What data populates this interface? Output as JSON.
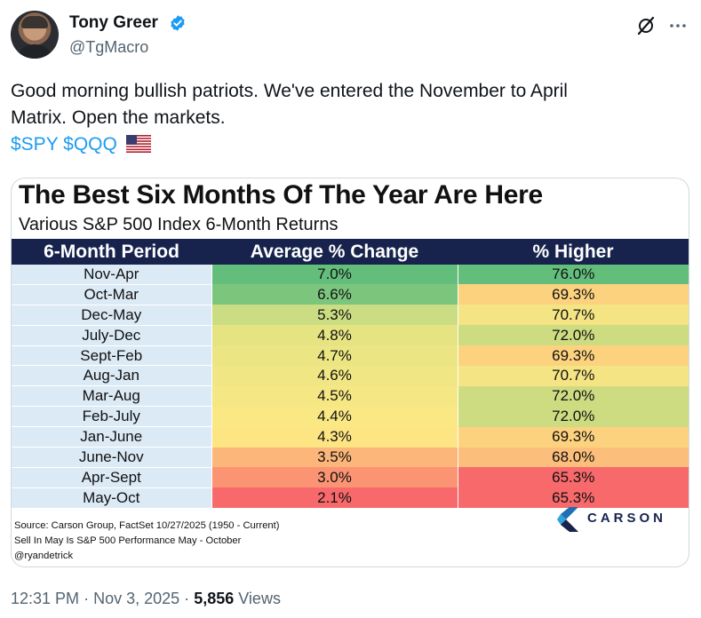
{
  "author": {
    "name": "Tony Greer",
    "handle": "@TgMacro",
    "verified_color": "#1d9bf0"
  },
  "tweet": {
    "line1": "Good morning bullish patriots.  We've entered the November to April",
    "line2": "Matrix.  Open the markets.",
    "cashtags": "$SPY $QQQ",
    "flag_icon": "us-flag-icon"
  },
  "card": {
    "title": "The Best Six Months Of The Year Are Here",
    "subtitle": "Various S&P 500 Index 6-Month Returns",
    "headers": [
      "6-Month Period",
      "Average % Change",
      "% Higher"
    ],
    "rows": [
      {
        "period": "Nov-Apr",
        "avg": "7.0%",
        "pct": "76.0%",
        "avg_color": "#63be7b",
        "pct_color": "#63be7b"
      },
      {
        "period": "Oct-Mar",
        "avg": "6.6%",
        "pct": "69.3%",
        "avg_color": "#7cc57d",
        "pct_color": "#fdd27f"
      },
      {
        "period": "Dec-May",
        "avg": "5.3%",
        "pct": "70.7%",
        "avg_color": "#cadd82",
        "pct_color": "#f4e483"
      },
      {
        "period": "July-Dec",
        "avg": "4.8%",
        "pct": "72.0%",
        "avg_color": "#e6e383",
        "pct_color": "#cddc80"
      },
      {
        "period": "Sept-Feb",
        "avg": "4.7%",
        "pct": "69.3%",
        "avg_color": "#ebe583",
        "pct_color": "#fdd27f"
      },
      {
        "period": "Aug-Jan",
        "avg": "4.6%",
        "pct": "70.7%",
        "avg_color": "#f0e684",
        "pct_color": "#f4e483"
      },
      {
        "period": "Mar-Aug",
        "avg": "4.5%",
        "pct": "72.0%",
        "avg_color": "#f5e784",
        "pct_color": "#cddc80"
      },
      {
        "period": "Feb-July",
        "avg": "4.4%",
        "pct": "72.0%",
        "avg_color": "#fae884",
        "pct_color": "#cddc80"
      },
      {
        "period": "Jan-June",
        "avg": "4.3%",
        "pct": "69.3%",
        "avg_color": "#fee583",
        "pct_color": "#fdd27f"
      },
      {
        "period": "June-Nov",
        "avg": "3.5%",
        "pct": "68.0%",
        "avg_color": "#fcb679",
        "pct_color": "#fcbf7b"
      },
      {
        "period": "Apr-Sept",
        "avg": "3.0%",
        "pct": "65.3%",
        "avg_color": "#fa9473",
        "pct_color": "#f8696b"
      },
      {
        "period": "May-Oct",
        "avg": "2.1%",
        "pct": "65.3%",
        "avg_color": "#f8696b",
        "pct_color": "#f8696b"
      }
    ],
    "source_line1": "Source: Carson Group, FactSet 10/27/2025 (1950 - Current)",
    "source_line2": "Sell In May Is S&P 500 Performance May - October",
    "source_line3": "@ryandetrick",
    "logo_text": "CARSON"
  },
  "meta": {
    "time": "12:31 PM",
    "date": "Nov 3, 2025",
    "separator": "·",
    "views_count": "5,856",
    "views_label": "Views"
  }
}
